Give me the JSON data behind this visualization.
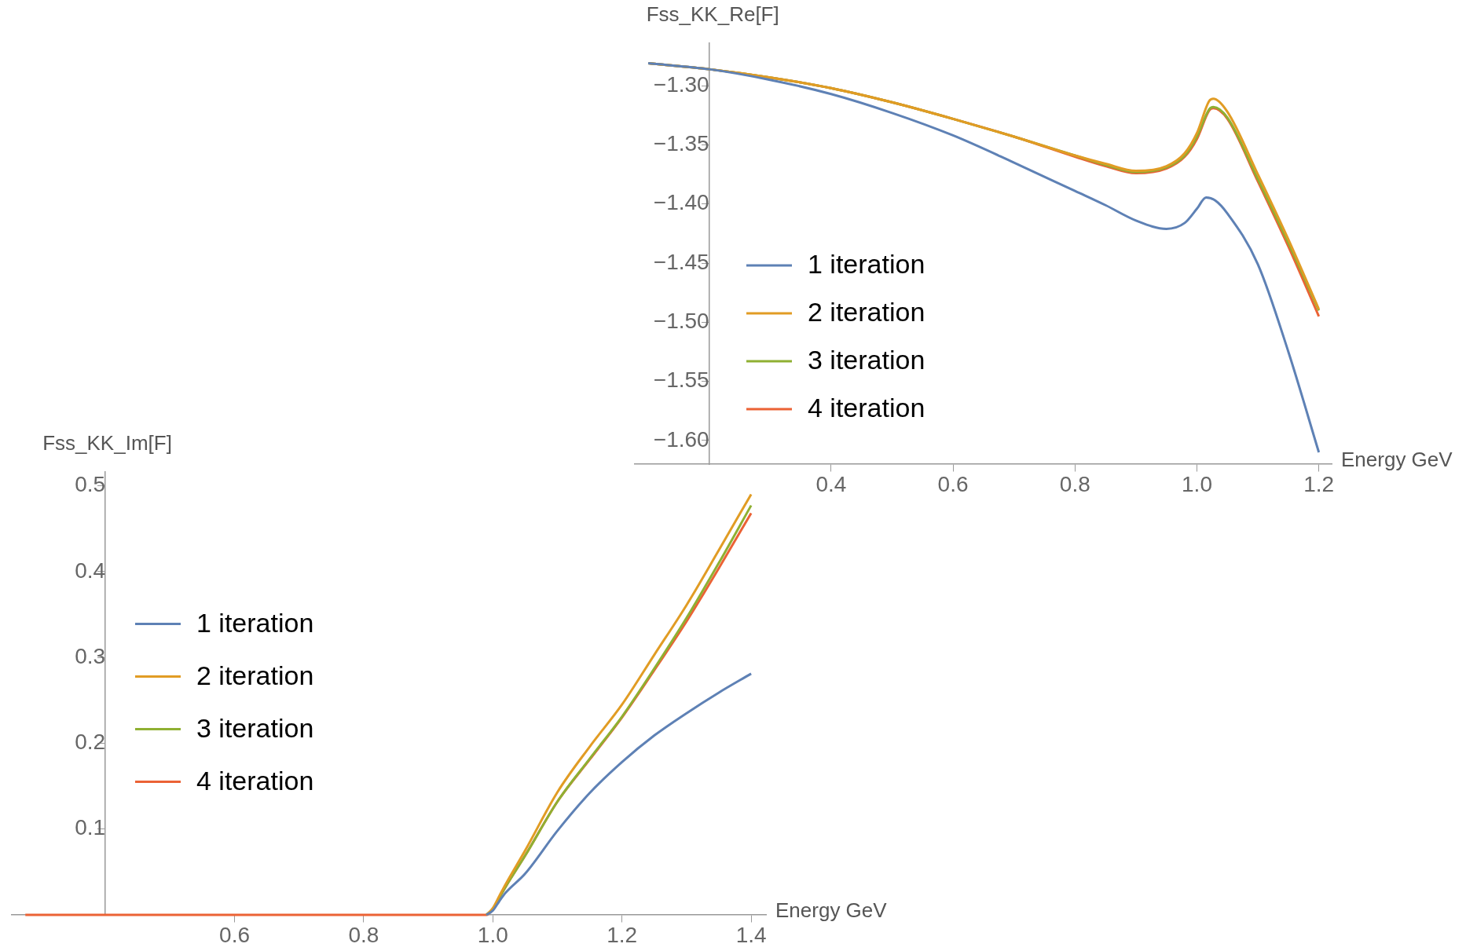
{
  "chart_data": [
    {
      "type": "line",
      "ylabel": "Fss_KK_Re[F]",
      "xlabel": "Energy GeV",
      "legend": "bottom left",
      "xlim": [
        0.078,
        1.221
      ],
      "ylim": [
        -1.62,
        -1.264
      ],
      "xticks": [
        0.4,
        0.6,
        0.8,
        {
          "value": 1,
          "label": "1.0"
        },
        1.2
      ],
      "yticks": [
        {
          "value": -1.3,
          "label": "−1.30"
        },
        {
          "value": -1.35,
          "label": "−1.35"
        },
        {
          "value": -1.4,
          "label": "−1.40"
        },
        {
          "value": -1.45,
          "label": "−1.45"
        },
        {
          "value": -1.5,
          "label": "−1.50"
        },
        {
          "value": -1.55,
          "label": "−1.55"
        },
        {
          "value": -1.6,
          "label": "−1.60"
        }
      ],
      "series": [
        {
          "name": "1 iteration",
          "color": "#5e81b5",
          "x": [
            0.1,
            0.2,
            0.3,
            0.4,
            0.5,
            0.6,
            0.7,
            0.8,
            0.85,
            0.9,
            0.95,
            0.98,
            1.0,
            1.015,
            1.03,
            1.05,
            1.1,
            1.15,
            1.2
          ],
          "values": [
            -1.281,
            -1.286,
            -1.295,
            -1.307,
            -1.323,
            -1.342,
            -1.365,
            -1.389,
            -1.401,
            -1.414,
            -1.421,
            -1.416,
            -1.404,
            -1.3945,
            -1.397,
            -1.408,
            -1.451,
            -1.525,
            -1.61
          ]
        },
        {
          "name": "2 iteration",
          "color": "#e19c24",
          "x": [
            0.1,
            0.2,
            0.3,
            0.4,
            0.5,
            0.6,
            0.7,
            0.8,
            0.85,
            0.9,
            0.95,
            0.98,
            1.0,
            1.02,
            1.027,
            1.05,
            1.1,
            1.15,
            1.2
          ],
          "values": [
            -1.281,
            -1.286,
            -1.293,
            -1.302,
            -1.314,
            -1.328,
            -1.343,
            -1.359,
            -1.366,
            -1.372,
            -1.368,
            -1.357,
            -1.34,
            -1.313,
            -1.311,
            -1.322,
            -1.375,
            -1.43,
            -1.489
          ]
        },
        {
          "name": "3 iteration",
          "color": "#8fb032",
          "x": [
            0.1,
            0.2,
            0.3,
            0.4,
            0.5,
            0.6,
            0.7,
            0.8,
            0.85,
            0.9,
            0.95,
            0.98,
            1.0,
            1.02,
            1.027,
            1.05,
            1.1,
            1.15,
            1.2
          ],
          "values": [
            -1.281,
            -1.286,
            -1.293,
            -1.302,
            -1.314,
            -1.328,
            -1.343,
            -1.359,
            -1.367,
            -1.373,
            -1.369,
            -1.359,
            -1.343,
            -1.32,
            -1.318,
            -1.327,
            -1.379,
            -1.433,
            -1.49
          ]
        },
        {
          "name": "4 iteration",
          "color": "#eb6235",
          "x": [
            0.1,
            0.2,
            0.3,
            0.4,
            0.5,
            0.6,
            0.7,
            0.8,
            0.85,
            0.9,
            0.95,
            0.98,
            1.0,
            1.02,
            1.027,
            1.05,
            1.1,
            1.15,
            1.2
          ],
          "values": [
            -1.281,
            -1.286,
            -1.293,
            -1.302,
            -1.314,
            -1.328,
            -1.343,
            -1.36,
            -1.368,
            -1.374,
            -1.37,
            -1.36,
            -1.345,
            -1.321,
            -1.319,
            -1.328,
            -1.381,
            -1.436,
            -1.495
          ]
        }
      ]
    },
    {
      "type": "line",
      "ylabel": "Fss_KK_Im[F]",
      "xlabel": "Energy GeV",
      "legend": "left",
      "xlim": [
        0.255,
        1.423
      ],
      "ylim": [
        0,
        0.516
      ],
      "xticks": [
        0.6,
        0.8,
        {
          "value": 1,
          "label": "1.0"
        },
        1.2,
        1.4
      ],
      "yticks": [
        0.1,
        0.2,
        0.3,
        0.4,
        0.5
      ],
      "series": [
        {
          "name": "1 iteration",
          "color": "#5e81b5",
          "x": [
            0.99,
            1.0,
            1.01,
            1.02,
            1.05,
            1.1,
            1.15,
            1.2,
            1.25,
            1.3,
            1.35,
            1.4
          ],
          "values": [
            0,
            0.005,
            0.016,
            0.026,
            0.048,
            0.098,
            0.142,
            0.178,
            0.209,
            0.235,
            0.259,
            0.281
          ]
        },
        {
          "name": "2 iteration",
          "color": "#e19c24",
          "x": [
            0.99,
            1.0,
            1.01,
            1.02,
            1.05,
            1.1,
            1.15,
            1.2,
            1.25,
            1.3,
            1.35,
            1.4
          ],
          "values": [
            0,
            0.008,
            0.022,
            0.036,
            0.075,
            0.143,
            0.196,
            0.245,
            0.303,
            0.361,
            0.425,
            0.49
          ]
        },
        {
          "name": "3 iteration",
          "color": "#8fb032",
          "x": [
            0.99,
            1.0,
            1.01,
            1.02,
            1.05,
            1.1,
            1.15,
            1.2,
            1.25,
            1.3,
            1.35,
            1.4
          ],
          "values": [
            0,
            0.007,
            0.02,
            0.033,
            0.069,
            0.132,
            0.182,
            0.231,
            0.287,
            0.346,
            0.41,
            0.477
          ]
        },
        {
          "name": "4 iteration",
          "color": "#eb6235",
          "x": [
            0.276,
            0.9,
            0.99,
            1.0,
            1.01,
            1.02,
            1.05,
            1.1,
            1.15,
            1.2,
            1.25,
            1.3,
            1.35,
            1.4
          ],
          "values": [
            0,
            0,
            0,
            0.007,
            0.02,
            0.033,
            0.069,
            0.132,
            0.181,
            0.23,
            0.285,
            0.342,
            0.404,
            0.468
          ]
        }
      ]
    }
  ]
}
